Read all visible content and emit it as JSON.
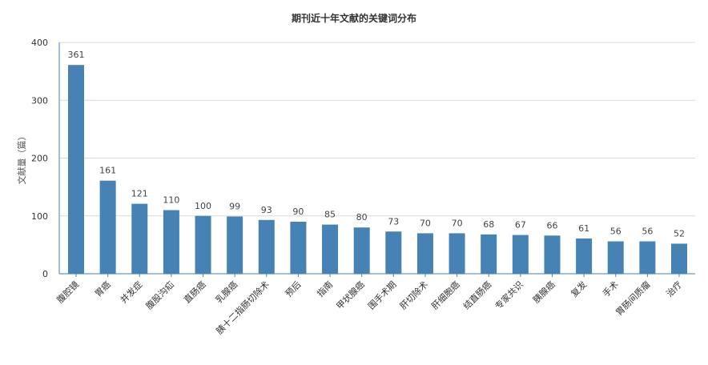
{
  "chart_data": {
    "type": "bar",
    "title": "期刊近十年文献的关键词分布",
    "xlabel": "",
    "ylabel": "文献量（篇）",
    "ylim": [
      0,
      400
    ],
    "yticks": [
      0,
      100,
      200,
      300,
      400
    ],
    "grid": true,
    "legend": "none",
    "bar_color": "#4682b4",
    "categories": [
      "腹腔镜",
      "胃癌",
      "并发症",
      "腹股沟疝",
      "直肠癌",
      "乳腺癌",
      "胰十二指肠切除术",
      "预后",
      "指南",
      "甲状腺癌",
      "围手术期",
      "肝切除术",
      "肝细胞癌",
      "结直肠癌",
      "专家共识",
      "胰腺癌",
      "复发",
      "手术",
      "胃肠间质瘤",
      "治疗"
    ],
    "values": [
      361,
      161,
      121,
      110,
      100,
      99,
      93,
      90,
      85,
      80,
      73,
      70,
      70,
      68,
      67,
      66,
      61,
      56,
      56,
      52
    ]
  }
}
